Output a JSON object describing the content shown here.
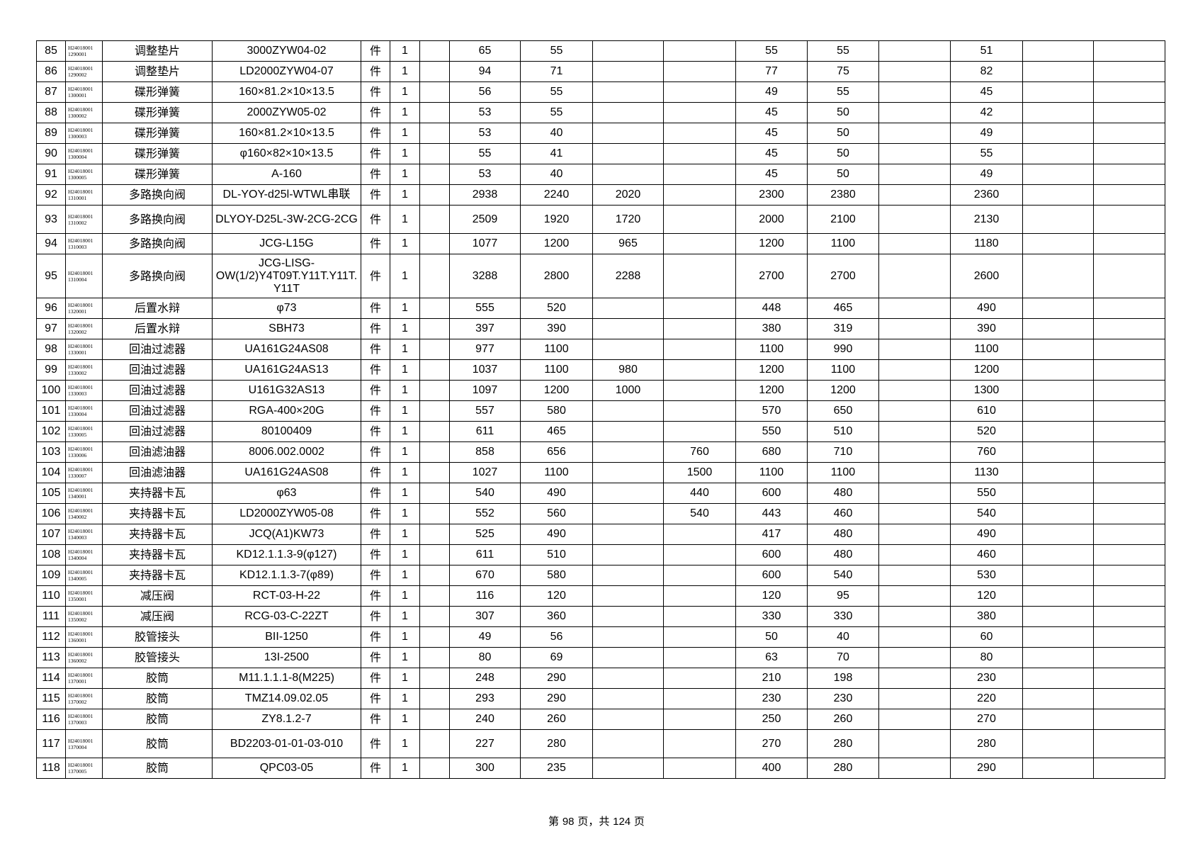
{
  "table": {
    "rows": [
      {
        "no": 85,
        "code": [
          "H24018001",
          "1290001"
        ],
        "name": "调整垫片",
        "spec": "3000ZYW04-02",
        "unit": "件",
        "qty": 1,
        "prices": [
          null,
          65,
          55,
          null,
          null,
          55,
          55,
          null,
          51,
          null,
          null
        ]
      },
      {
        "no": 86,
        "code": [
          "H24018001",
          "1290002"
        ],
        "name": "调整垫片",
        "spec": "LD2000ZYW04-07",
        "unit": "件",
        "qty": 1,
        "prices": [
          null,
          94,
          71,
          null,
          null,
          77,
          75,
          null,
          82,
          null,
          null
        ]
      },
      {
        "no": 87,
        "code": [
          "H24018001",
          "1300001"
        ],
        "name": "碟形弹簧",
        "spec": "160×81.2×10×13.5",
        "unit": "件",
        "qty": 1,
        "prices": [
          null,
          56,
          55,
          null,
          null,
          49,
          55,
          null,
          45,
          null,
          null
        ]
      },
      {
        "no": 88,
        "code": [
          "H24018001",
          "1300002"
        ],
        "name": "碟形弹簧",
        "spec": "2000ZYW05-02",
        "unit": "件",
        "qty": 1,
        "prices": [
          null,
          53,
          55,
          null,
          null,
          45,
          50,
          null,
          42,
          null,
          null
        ]
      },
      {
        "no": 89,
        "code": [
          "H24018001",
          "1300003"
        ],
        "name": "碟形弹簧",
        "spec": "160×81.2×10×13.5",
        "unit": "件",
        "qty": 1,
        "prices": [
          null,
          53,
          40,
          null,
          null,
          45,
          50,
          null,
          49,
          null,
          null
        ]
      },
      {
        "no": 90,
        "code": [
          "H24018001",
          "1300004"
        ],
        "name": "碟形弹簧",
        "spec": "φ160×82×10×13.5",
        "unit": "件",
        "qty": 1,
        "prices": [
          null,
          55,
          41,
          null,
          null,
          45,
          50,
          null,
          55,
          null,
          null
        ]
      },
      {
        "no": 91,
        "code": [
          "H24018001",
          "1300005"
        ],
        "name": "碟形弹簧",
        "spec": "A-160",
        "unit": "件",
        "qty": 1,
        "prices": [
          null,
          53,
          40,
          null,
          null,
          45,
          50,
          null,
          49,
          null,
          null
        ]
      },
      {
        "no": 92,
        "code": [
          "H24018001",
          "1310001"
        ],
        "name": "多路换向阀",
        "spec": "DL-YOY-d25l-WTWL串联",
        "unit": "件",
        "qty": 1,
        "prices": [
          null,
          2938,
          2240,
          2020,
          null,
          2300,
          2380,
          null,
          2360,
          null,
          null
        ]
      },
      {
        "no": 93,
        "code": [
          "H24018001",
          "1310002"
        ],
        "name": "多路换向阀",
        "spec": "DLYOY-D25L-3W-2CG-2CG",
        "unit": "件",
        "qty": 1,
        "prices": [
          null,
          2509,
          1920,
          1720,
          null,
          2000,
          2100,
          null,
          2130,
          null,
          null
        ]
      },
      {
        "no": 94,
        "code": [
          "H24018001",
          "1310003"
        ],
        "name": "多路换向阀",
        "spec": "JCG-L15G",
        "unit": "件",
        "qty": 1,
        "prices": [
          null,
          1077,
          1200,
          965,
          null,
          1200,
          1100,
          null,
          1180,
          null,
          null
        ]
      },
      {
        "no": 95,
        "code": [
          "H24018001",
          "1310004"
        ],
        "name": "多路换向阀",
        "spec": "JCG-LISG-OW(1/2)Y4T09T.Y11T.Y11T.Y11T",
        "unit": "件",
        "qty": 1,
        "prices": [
          null,
          3288,
          2800,
          2288,
          null,
          2700,
          2700,
          null,
          2600,
          null,
          null
        ]
      },
      {
        "no": 96,
        "code": [
          "H24018001",
          "1320001"
        ],
        "name": "后置水辩",
        "spec": "φ73",
        "unit": "件",
        "qty": 1,
        "prices": [
          null,
          555,
          520,
          null,
          null,
          448,
          465,
          null,
          490,
          null,
          null
        ]
      },
      {
        "no": 97,
        "code": [
          "H24018001",
          "1320002"
        ],
        "name": "后置水辩",
        "spec": "SBH73",
        "unit": "件",
        "qty": 1,
        "prices": [
          null,
          397,
          390,
          null,
          null,
          380,
          319,
          null,
          390,
          null,
          null
        ]
      },
      {
        "no": 98,
        "code": [
          "H24018001",
          "1330001"
        ],
        "name": "回油过滤器",
        "spec": "UA161G24AS08",
        "unit": "件",
        "qty": 1,
        "prices": [
          null,
          977,
          1100,
          null,
          null,
          1100,
          990,
          null,
          1100,
          null,
          null
        ]
      },
      {
        "no": 99,
        "code": [
          "H24018001",
          "1330002"
        ],
        "name": "回油过滤器",
        "spec": "UA161G24AS13",
        "unit": "件",
        "qty": 1,
        "prices": [
          null,
          1037,
          1100,
          980,
          null,
          1200,
          1100,
          null,
          1200,
          null,
          null
        ]
      },
      {
        "no": 100,
        "code": [
          "H24018001",
          "1330003"
        ],
        "name": "回油过滤器",
        "spec": "U161G32AS13",
        "unit": "件",
        "qty": 1,
        "prices": [
          null,
          1097,
          1200,
          1000,
          null,
          1200,
          1200,
          null,
          1300,
          null,
          null
        ]
      },
      {
        "no": 101,
        "code": [
          "H24018001",
          "1330004"
        ],
        "name": "回油过滤器",
        "spec": "RGA-400×20G",
        "unit": "件",
        "qty": 1,
        "prices": [
          null,
          557,
          580,
          null,
          null,
          570,
          650,
          null,
          610,
          null,
          null
        ]
      },
      {
        "no": 102,
        "code": [
          "H24018001",
          "1330005"
        ],
        "name": "回油过滤器",
        "spec": "80100409",
        "unit": "件",
        "qty": 1,
        "prices": [
          null,
          611,
          465,
          null,
          null,
          550,
          510,
          null,
          520,
          null,
          null
        ]
      },
      {
        "no": 103,
        "code": [
          "H24018001",
          "1330006"
        ],
        "name": "回油滤油器",
        "spec": "8006.002.0002",
        "unit": "件",
        "qty": 1,
        "prices": [
          null,
          858,
          656,
          null,
          760,
          680,
          710,
          null,
          760,
          null,
          null
        ]
      },
      {
        "no": 104,
        "code": [
          "H24018001",
          "1330007"
        ],
        "name": "回油滤油器",
        "spec": "UA161G24AS08",
        "unit": "件",
        "qty": 1,
        "prices": [
          null,
          1027,
          1100,
          null,
          1500,
          1100,
          1100,
          null,
          1130,
          null,
          null
        ]
      },
      {
        "no": 105,
        "code": [
          "H24018001",
          "1340001"
        ],
        "name": "夹持器卡瓦",
        "spec": "φ63",
        "unit": "件",
        "qty": 1,
        "prices": [
          null,
          540,
          490,
          null,
          440,
          600,
          480,
          null,
          550,
          null,
          null
        ]
      },
      {
        "no": 106,
        "code": [
          "H24018001",
          "1340002"
        ],
        "name": "夹持器卡瓦",
        "spec": "LD2000ZYW05-08",
        "unit": "件",
        "qty": 1,
        "prices": [
          null,
          552,
          560,
          null,
          540,
          443,
          460,
          null,
          540,
          null,
          null
        ]
      },
      {
        "no": 107,
        "code": [
          "H24018001",
          "1340003"
        ],
        "name": "夹持器卡瓦",
        "spec": "JCQ(A1)KW73",
        "unit": "件",
        "qty": 1,
        "prices": [
          null,
          525,
          490,
          null,
          null,
          417,
          480,
          null,
          490,
          null,
          null
        ]
      },
      {
        "no": 108,
        "code": [
          "H24018001",
          "1340004"
        ],
        "name": "夹持器卡瓦",
        "spec": "KD12.1.1.3-9(φ127)",
        "unit": "件",
        "qty": 1,
        "prices": [
          null,
          611,
          510,
          null,
          null,
          600,
          480,
          null,
          460,
          null,
          null
        ]
      },
      {
        "no": 109,
        "code": [
          "H24018001",
          "1340005"
        ],
        "name": "夹持器卡瓦",
        "spec": "KD12.1.1.3-7(φ89)",
        "unit": "件",
        "qty": 1,
        "prices": [
          null,
          670,
          580,
          null,
          null,
          600,
          540,
          null,
          530,
          null,
          null
        ]
      },
      {
        "no": 110,
        "code": [
          "H24018001",
          "1350001"
        ],
        "name": "减压阀",
        "spec": "RCT-03-H-22",
        "unit": "件",
        "qty": 1,
        "prices": [
          null,
          116,
          120,
          null,
          null,
          120,
          95,
          null,
          120,
          null,
          null
        ]
      },
      {
        "no": 111,
        "code": [
          "H24018001",
          "1350002"
        ],
        "name": "减压阀",
        "spec": "RCG-03-C-22ZT",
        "unit": "件",
        "qty": 1,
        "prices": [
          null,
          307,
          360,
          null,
          null,
          330,
          330,
          null,
          380,
          null,
          null
        ]
      },
      {
        "no": 112,
        "code": [
          "H24018001",
          "1360001"
        ],
        "name": "胶管接头",
        "spec": "BII-1250",
        "unit": "件",
        "qty": 1,
        "prices": [
          null,
          49,
          56,
          null,
          null,
          50,
          40,
          null,
          60,
          null,
          null
        ]
      },
      {
        "no": 113,
        "code": [
          "H24018001",
          "1360002"
        ],
        "name": "胶管接头",
        "spec": "13I-2500",
        "unit": "件",
        "qty": 1,
        "prices": [
          null,
          80,
          69,
          null,
          null,
          63,
          70,
          null,
          80,
          null,
          null
        ]
      },
      {
        "no": 114,
        "code": [
          "H24018001",
          "1370001"
        ],
        "name": "胶筒",
        "spec": "M11.1.1.1-8(M225)",
        "unit": "件",
        "qty": 1,
        "prices": [
          null,
          248,
          290,
          null,
          null,
          210,
          198,
          null,
          230,
          null,
          null
        ]
      },
      {
        "no": 115,
        "code": [
          "H24018001",
          "1370002"
        ],
        "name": "胶筒",
        "spec": "TMZ14.09.02.05",
        "unit": "件",
        "qty": 1,
        "prices": [
          null,
          293,
          290,
          null,
          null,
          230,
          230,
          null,
          220,
          null,
          null
        ]
      },
      {
        "no": 116,
        "code": [
          "H24018001",
          "1370003"
        ],
        "name": "胶筒",
        "spec": "ZY8.1.2-7",
        "unit": "件",
        "qty": 1,
        "prices": [
          null,
          240,
          260,
          null,
          null,
          250,
          260,
          null,
          270,
          null,
          null
        ]
      },
      {
        "no": 117,
        "code": [
          "H24018001",
          "1370004"
        ],
        "name": "胶筒",
        "spec": "BD2203-01-01-03-010",
        "unit": "件",
        "qty": 1,
        "prices": [
          null,
          227,
          280,
          null,
          null,
          270,
          280,
          null,
          280,
          null,
          null
        ]
      },
      {
        "no": 118,
        "code": [
          "H24018001",
          "1370005"
        ],
        "name": "胶筒",
        "spec": "QPC03-05",
        "unit": "件",
        "qty": 1,
        "prices": [
          null,
          300,
          235,
          null,
          null,
          400,
          280,
          null,
          290,
          null,
          null
        ]
      }
    ]
  },
  "footer": {
    "prefix": "第",
    "page": 98,
    "middle": "页，共",
    "total": 124,
    "suffix": "页"
  }
}
